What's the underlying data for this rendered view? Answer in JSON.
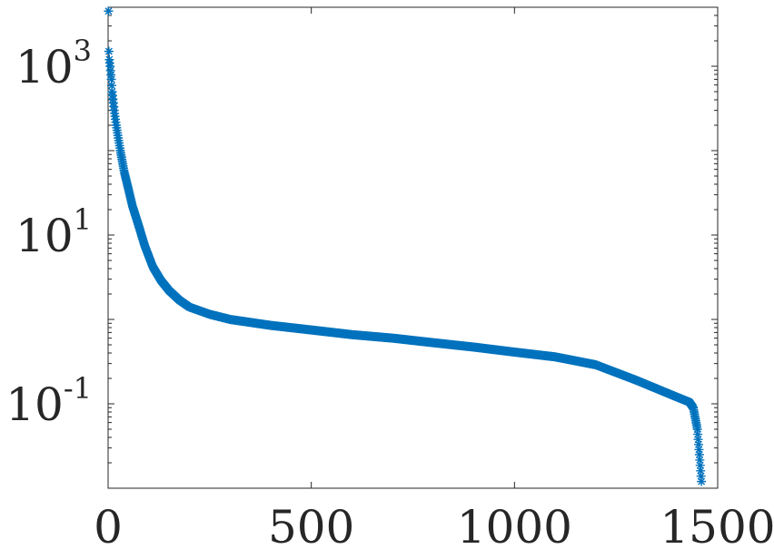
{
  "chart_data": {
    "type": "scatter",
    "title": "",
    "xlabel": "",
    "ylabel": "",
    "xlim": [
      0,
      1500
    ],
    "ylim": [
      0.01,
      5000
    ],
    "yscale": "log",
    "grid": false,
    "marker": "asterisk",
    "color": "#0072bd",
    "x_ticks": [
      {
        "value": 0,
        "label": "0"
      },
      {
        "value": 500,
        "label": "500"
      },
      {
        "value": 1000,
        "label": "1000"
      },
      {
        "value": 1500,
        "label": "1500"
      }
    ],
    "y_ticks": [
      {
        "value": 0.1,
        "base": "10",
        "exp": "-1"
      },
      {
        "value": 10,
        "base": "10",
        "exp": "1"
      },
      {
        "value": 1000,
        "base": "10",
        "exp": "3"
      }
    ],
    "series": [
      {
        "n_points": 1460,
        "profile": [
          [
            1,
            4500
          ],
          [
            2,
            1500
          ],
          [
            3,
            1200
          ],
          [
            5,
            1000
          ],
          [
            8,
            700
          ],
          [
            10,
            500
          ],
          [
            15,
            300
          ],
          [
            20,
            200
          ],
          [
            30,
            100
          ],
          [
            40,
            55
          ],
          [
            50,
            35
          ],
          [
            60,
            22
          ],
          [
            75,
            13
          ],
          [
            90,
            7.5
          ],
          [
            110,
            4.2
          ],
          [
            130,
            2.9
          ],
          [
            150,
            2.2
          ],
          [
            175,
            1.7
          ],
          [
            200,
            1.4
          ],
          [
            250,
            1.15
          ],
          [
            300,
            1.0
          ],
          [
            400,
            0.85
          ],
          [
            500,
            0.75
          ],
          [
            600,
            0.66
          ],
          [
            700,
            0.6
          ],
          [
            800,
            0.53
          ],
          [
            900,
            0.47
          ],
          [
            1000,
            0.41
          ],
          [
            1100,
            0.36
          ],
          [
            1200,
            0.29
          ],
          [
            1300,
            0.19
          ],
          [
            1400,
            0.12
          ],
          [
            1430,
            0.105
          ],
          [
            1440,
            0.09
          ],
          [
            1450,
            0.05
          ],
          [
            1455,
            0.025
          ],
          [
            1460,
            0.012
          ]
        ]
      }
    ]
  }
}
